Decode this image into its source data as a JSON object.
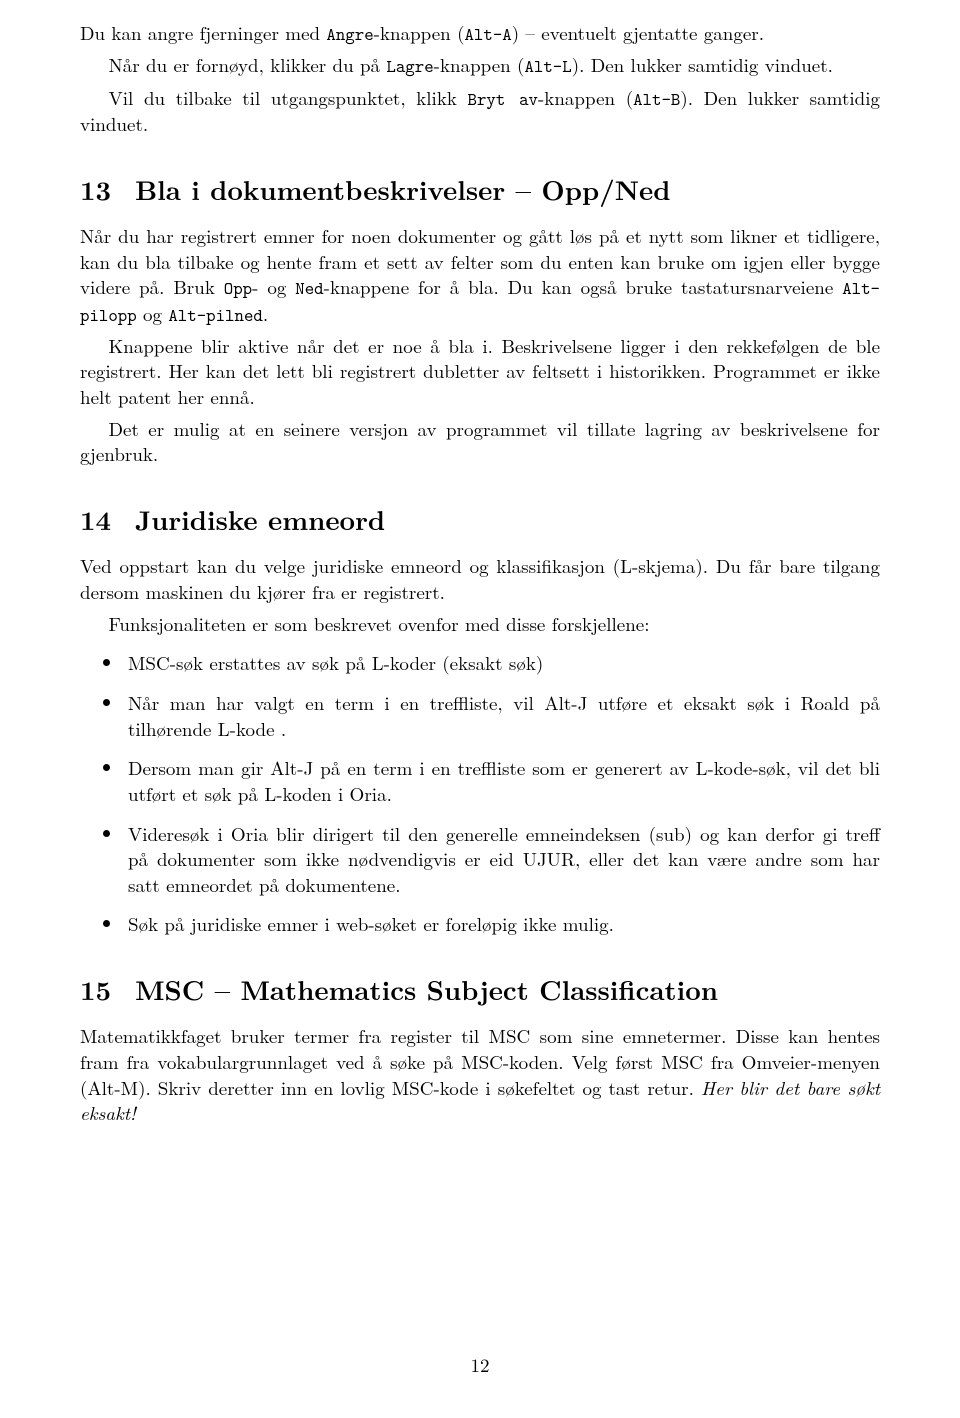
{
  "intro": {
    "p1_a": "Du kan angre fjerninger med ",
    "p1_b": "Angre",
    "p1_c": "-knappen (",
    "p1_d": "Alt-A",
    "p1_e": ") – eventuelt gjentatte ganger.",
    "p2_a": "Når du er fornøyd, klikker du på ",
    "p2_b": "Lagre",
    "p2_c": "-knappen (",
    "p2_d": "Alt-L",
    "p2_e": "). Den lukker samtidig vinduet.",
    "p3_a": "Vil du tilbake til utgangspunktet, klikk ",
    "p3_b": "Bryt av",
    "p3_c": "-knappen (",
    "p3_d": "Alt-B",
    "p3_e": "). Den lukker samtidig vinduet."
  },
  "sec13": {
    "num": "13",
    "title": "Bla i dokumentbeskrivelser – Opp/Ned",
    "p1_a": "Når du har registrert emner for noen dokumenter og gått løs på et nytt som likner et tidligere, kan du bla tilbake og hente fram et sett av felter som du enten kan bruke om igjen eller bygge videre på. Bruk ",
    "p1_b": "Opp",
    "p1_c": "- og ",
    "p1_d": "Ned",
    "p1_e": "-knappene for å bla. Du kan også bruke tastatursnarveiene ",
    "p1_f": "Alt-pilopp",
    "p1_g": " og ",
    "p1_h": "Alt-pilned",
    "p1_i": ".",
    "p2": "Knappene blir aktive når det er noe å bla i. Beskrivelsene ligger i den rekkefølgen de ble registrert. Her kan det lett bli registrert dubletter av feltsett i historikken. Programmet er ikke helt patent her ennå.",
    "p3": "Det er mulig at en seinere versjon av programmet vil tillate lagring av beskrivelsene for gjenbruk."
  },
  "sec14": {
    "num": "14",
    "title": "Juridiske emneord",
    "p1": "Ved oppstart kan du velge juridiske emneord og klassifikasjon (L-skjema). Du får bare tilgang dersom maskinen du kjører fra er registrert.",
    "p2": "Funksjonaliteten er som beskrevet ovenfor med disse forskjellene:",
    "bullets": [
      "MSC-søk erstattes av søk på L-koder (eksakt søk)",
      "Når man har valgt en term i en treffliste, vil Alt-J utføre et eksakt søk i Roald på tilhørende L-kode .",
      "Dersom man gir Alt-J på en term i en treffliste som er generert av L-kode-søk, vil det bli utført et søk på L-koden i Oria.",
      "Videresøk i Oria blir dirigert til den generelle emneindeksen (sub) og kan derfor gi treff på dokumenter som ikke nødvendigvis er eid UJUR, eller det kan være andre som har satt emneordet på dokumentene.",
      "Søk på juridiske emner i web-søket er foreløpig ikke mulig."
    ]
  },
  "sec15": {
    "num": "15",
    "title": "MSC – Mathematics Subject Classification",
    "p1_a": "Matematikkfaget bruker termer fra register til MSC som sine emnetermer. Disse kan hentes fram fra vokabulargrunnlaget ved å søke på MSC-koden. Velg først MSC fra Omveier-menyen (Alt-M). Skriv deretter inn en lovlig MSC-kode i søkefeltet og tast retur. ",
    "p1_b": "Her blir det bare søkt eksakt!"
  },
  "page_number": "12"
}
